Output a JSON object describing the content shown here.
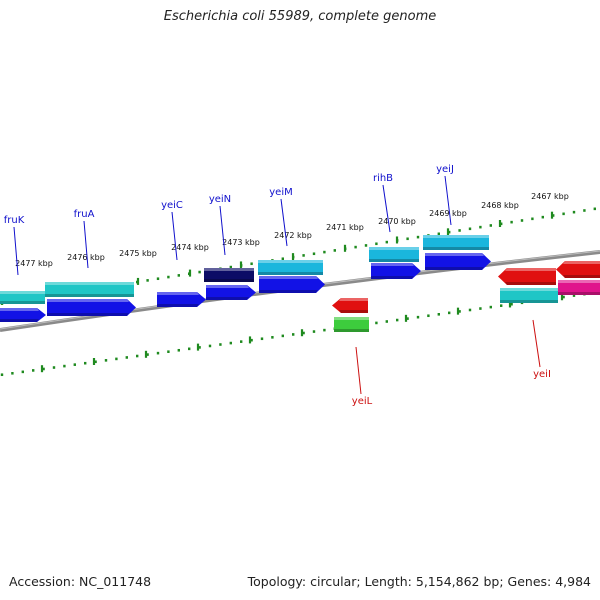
{
  "header": {
    "title": "Escherichia coli 55989, complete genome"
  },
  "footer": {
    "accession": "Accession: NC_011748",
    "summary": "Topology: circular; Length: 5,154,862 bp; Genes: 4,984"
  },
  "colors": {
    "backbone": "#8a8a8a",
    "tick": "#1f8a1f",
    "forward_label": "#1010cc",
    "reverse_label": "#cc1010",
    "dark_blue": "#0c0c66",
    "blue": "#1212e6",
    "cyan": "#1ab6dd",
    "teal": "#1fc6c6",
    "red": "#e01010",
    "green": "#3dcc3d",
    "magenta": "#e0158c"
  },
  "scale": {
    "unit": "kbp",
    "labels": [
      "2477 kbp",
      "2476 kbp",
      "2475 kbp",
      "2474 kbp",
      "2473 kbp",
      "2472 kbp",
      "2471 kbp",
      "2470 kbp",
      "2469 kbp",
      "2468 kbp",
      "2467 kbp"
    ]
  },
  "genes": {
    "forward": [
      {
        "name": "fruK",
        "strand": "+"
      },
      {
        "name": "fruA",
        "strand": "+"
      },
      {
        "name": "yeiC",
        "strand": "+"
      },
      {
        "name": "yeiN",
        "strand": "+"
      },
      {
        "name": "yeiM",
        "strand": "+"
      },
      {
        "name": "rihB",
        "strand": "+"
      },
      {
        "name": "yeiJ",
        "strand": "+"
      }
    ],
    "reverse": [
      {
        "name": "yeiL",
        "strand": "-"
      },
      {
        "name": "yeiI",
        "strand": "-"
      }
    ]
  }
}
